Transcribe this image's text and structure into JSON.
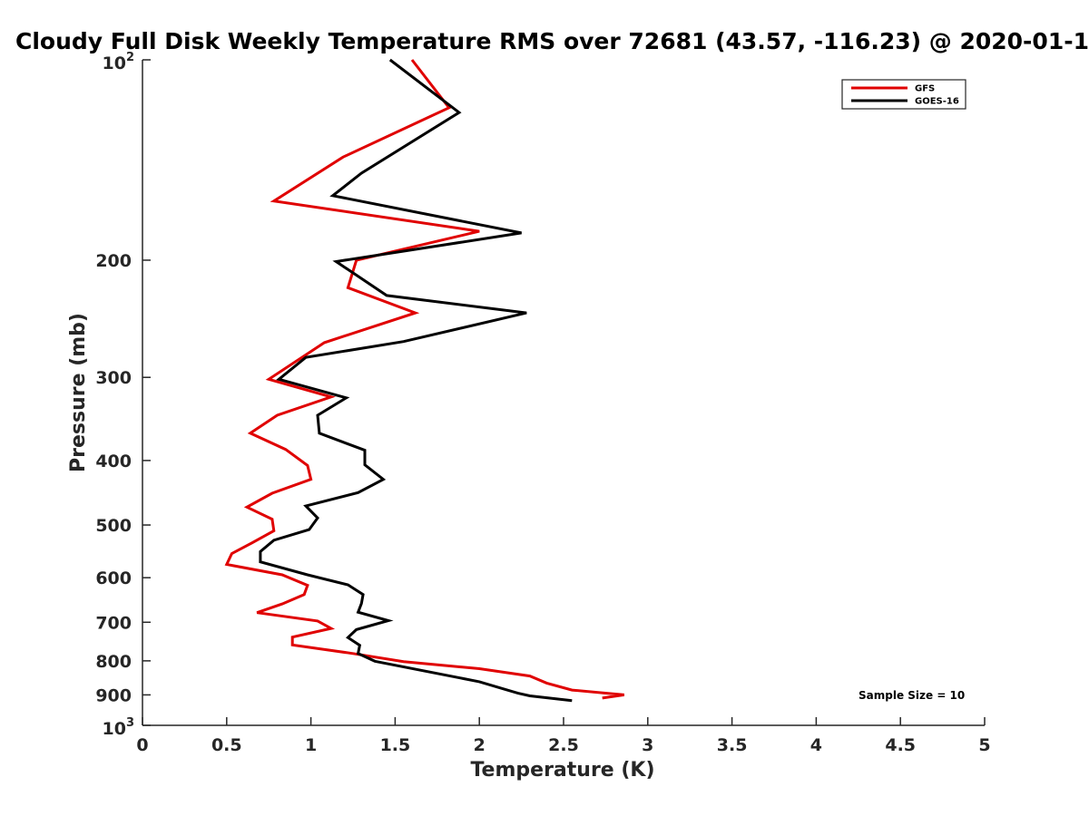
{
  "chart_data": {
    "type": "line",
    "title": "Cloudy Full Disk Weekly Temperature RMS over 72681 (43.57, -116.23) @ 2020-01-1",
    "xlabel": "Temperature (K)",
    "ylabel": "Pressure (mb)",
    "xlim": [
      0,
      5
    ],
    "ylim": [
      100,
      1000
    ],
    "y_scale": "log",
    "y_reversed": true,
    "grid": false,
    "legend_position": "top-right",
    "x_ticks": [
      "0",
      "0.5",
      "1",
      "1.5",
      "2",
      "2.5",
      "3",
      "3.5",
      "4",
      "4.5",
      "5"
    ],
    "y_ticks": [
      {
        "value": 100,
        "base": "10",
        "exp": "2"
      },
      {
        "value": 200,
        "label": "200"
      },
      {
        "value": 300,
        "label": "300"
      },
      {
        "value": 400,
        "label": "400"
      },
      {
        "value": 500,
        "label": "500"
      },
      {
        "value": 600,
        "label": "600"
      },
      {
        "value": 700,
        "label": "700"
      },
      {
        "value": 800,
        "label": "800"
      },
      {
        "value": 900,
        "label": "900"
      },
      {
        "value": 1000,
        "base": "10",
        "exp": "3"
      }
    ],
    "annotation": "Sample Size = 10",
    "series": [
      {
        "name": "GFS",
        "color": "#e00000",
        "points": [
          [
            1.6,
            100
          ],
          [
            1.82,
            118
          ],
          [
            1.19,
            140
          ],
          [
            0.78,
            163
          ],
          [
            2.0,
            181
          ],
          [
            1.27,
            200
          ],
          [
            1.22,
            220
          ],
          [
            1.62,
            240
          ],
          [
            1.08,
            266
          ],
          [
            0.75,
            302
          ],
          [
            1.12,
            321
          ],
          [
            0.8,
            342
          ],
          [
            0.64,
            364
          ],
          [
            0.85,
            385
          ],
          [
            0.98,
            407
          ],
          [
            1.0,
            427
          ],
          [
            0.77,
            448
          ],
          [
            0.62,
            470
          ],
          [
            0.77,
            490
          ],
          [
            0.78,
            510
          ],
          [
            0.65,
            532
          ],
          [
            0.53,
            552
          ],
          [
            0.5,
            573
          ],
          [
            0.83,
            594
          ],
          [
            0.98,
            616
          ],
          [
            0.96,
            636
          ],
          [
            0.83,
            657
          ],
          [
            0.68,
            677
          ],
          [
            1.04,
            697
          ],
          [
            1.12,
            715
          ],
          [
            0.89,
            737
          ],
          [
            0.89,
            757
          ],
          [
            1.25,
            780
          ],
          [
            1.55,
            802
          ],
          [
            2.0,
            822
          ],
          [
            2.3,
            843
          ],
          [
            2.4,
            864
          ],
          [
            2.55,
            885
          ],
          [
            2.86,
            900
          ],
          [
            2.73,
            910
          ]
        ]
      },
      {
        "name": "GOES-16",
        "color": "#000000",
        "points": [
          [
            1.47,
            100
          ],
          [
            1.88,
            120
          ],
          [
            1.3,
            148
          ],
          [
            1.13,
            160
          ],
          [
            2.25,
            182
          ],
          [
            1.15,
            201
          ],
          [
            1.45,
            226
          ],
          [
            2.28,
            240
          ],
          [
            1.55,
            265
          ],
          [
            0.97,
            280
          ],
          [
            0.81,
            302
          ],
          [
            1.21,
            322
          ],
          [
            1.04,
            342
          ],
          [
            1.05,
            364
          ],
          [
            1.32,
            386
          ],
          [
            1.32,
            406
          ],
          [
            1.43,
            427
          ],
          [
            1.28,
            447
          ],
          [
            0.97,
            468
          ],
          [
            1.04,
            488
          ],
          [
            0.99,
            508
          ],
          [
            0.78,
            527
          ],
          [
            0.7,
            548
          ],
          [
            0.7,
            568
          ],
          [
            0.98,
            594
          ],
          [
            1.22,
            615
          ],
          [
            1.31,
            636
          ],
          [
            1.3,
            656
          ],
          [
            1.28,
            676
          ],
          [
            1.46,
            696
          ],
          [
            1.27,
            718
          ],
          [
            1.22,
            738
          ],
          [
            1.29,
            758
          ],
          [
            1.28,
            780
          ],
          [
            1.38,
            801
          ],
          [
            2.0,
            860
          ],
          [
            2.23,
            895
          ],
          [
            2.3,
            903
          ],
          [
            2.55,
            918
          ]
        ]
      }
    ]
  }
}
